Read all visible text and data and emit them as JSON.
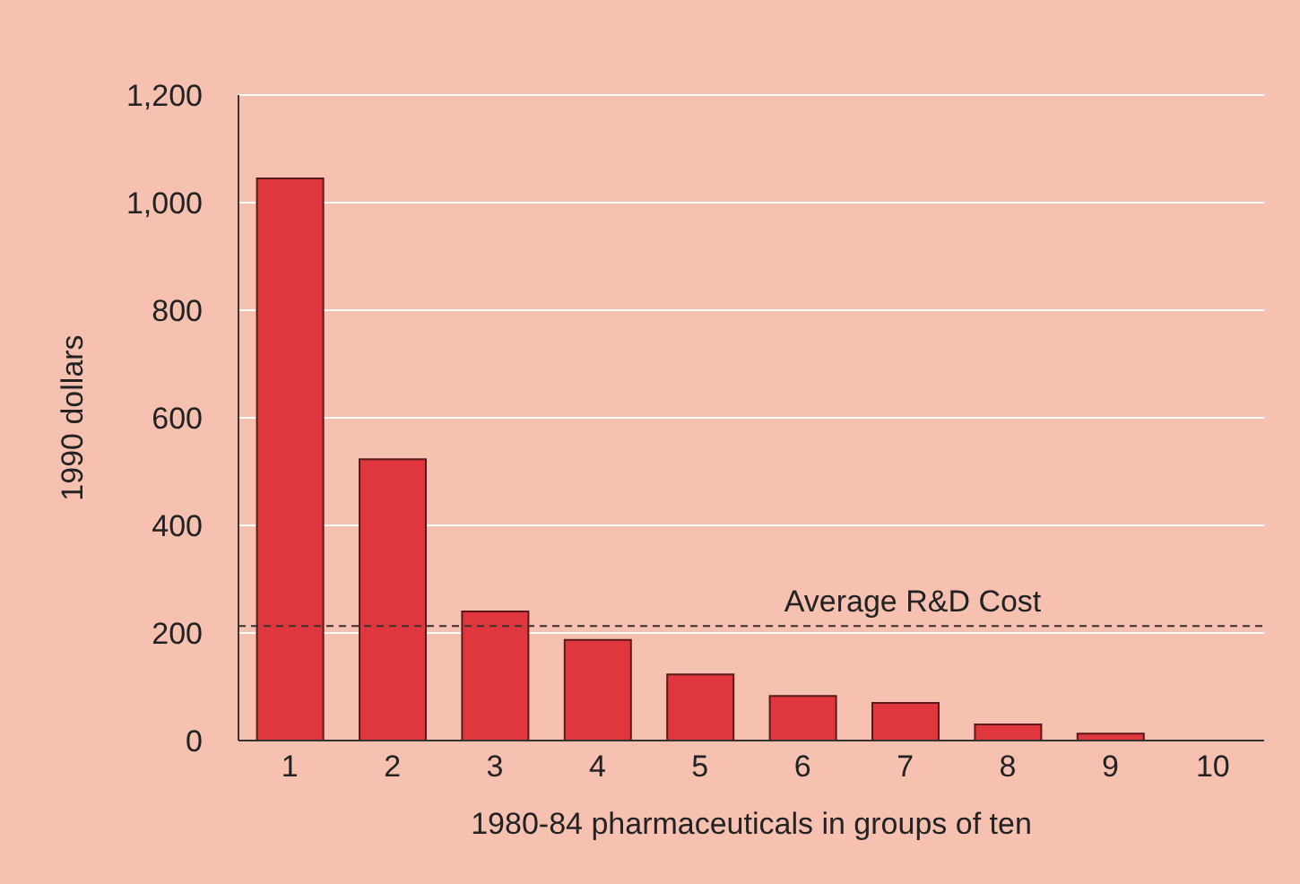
{
  "chart_data": {
    "type": "bar",
    "xlabel": "1980-84 pharmaceuticals in groups of ten",
    "ylabel": "1990 dollars",
    "categories": [
      "1",
      "2",
      "3",
      "4",
      "5",
      "6",
      "7",
      "8",
      "9",
      "10"
    ],
    "values": [
      1045,
      523,
      240,
      187,
      123,
      83,
      70,
      30,
      13,
      null
    ],
    "color": "#e0363d",
    "ylim": [
      0,
      1200
    ],
    "yticks": [
      0,
      200,
      400,
      600,
      800,
      {
        "value": 1000,
        "label": "1,000"
      },
      {
        "value": 1200,
        "label": "1,200"
      }
    ],
    "grid": "y",
    "ref_lines": [
      {
        "axis": "y",
        "value": 213,
        "label": "Average R&D Cost",
        "color": "#333333",
        "line_style": "dashed"
      }
    ]
  }
}
